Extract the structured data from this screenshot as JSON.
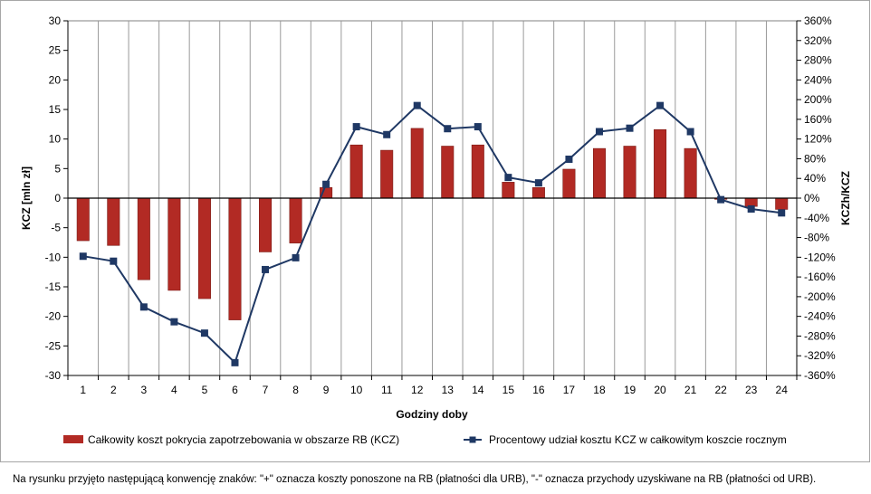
{
  "chart_data": {
    "type": "bar",
    "xlabel": "Godziny doby",
    "ylabel": "KCZ [mln zł]",
    "y2label": "KCZh/KCZ",
    "categories": [
      "1",
      "2",
      "3",
      "4",
      "5",
      "6",
      "7",
      "8",
      "9",
      "10",
      "11",
      "12",
      "13",
      "14",
      "15",
      "16",
      "17",
      "18",
      "19",
      "20",
      "21",
      "22",
      "23",
      "24"
    ],
    "ylim": [
      -30,
      30
    ],
    "yticks": [
      "30",
      "25",
      "20",
      "15",
      "10",
      "5",
      "0",
      "-5",
      "-10",
      "-15",
      "-20",
      "-25",
      "-30"
    ],
    "y2lim": [
      -360,
      360
    ],
    "y2ticks": [
      "360%",
      "320%",
      "280%",
      "240%",
      "200%",
      "160%",
      "120%",
      "80%",
      "40%",
      "0%",
      "-40%",
      "-80%",
      "-120%",
      "-160%",
      "-200%",
      "-240%",
      "-280%",
      "-320%",
      "-360%"
    ],
    "grid": "vertical",
    "legend_position": "bottom",
    "series": [
      {
        "name": "Całkowity koszt pokrycia zapotrzebowania w obszarze RB (KCZ)",
        "type": "bar",
        "axis": "left",
        "color": "#b22a24",
        "values": [
          -7.2,
          -8.0,
          -13.8,
          -15.6,
          -17.0,
          -20.6,
          -9.1,
          -7.6,
          1.8,
          9.0,
          8.1,
          11.8,
          8.8,
          9.0,
          2.7,
          1.8,
          4.9,
          8.4,
          8.8,
          11.6,
          8.4,
          -0.2,
          -1.4,
          -1.9
        ]
      },
      {
        "name": "Procentowy udział kosztu KCZ w całkowitym koszcie rocznym",
        "type": "line",
        "axis": "right",
        "color": "#1f3864",
        "values": [
          -118,
          -128,
          -221,
          -251,
          -274,
          -334,
          -145,
          -121,
          28,
          145,
          129,
          188,
          141,
          145,
          42,
          31,
          79,
          135,
          142,
          188,
          135,
          -3,
          -22,
          -30
        ]
      }
    ]
  },
  "footnote": "Na rysunku przyjęto następującą konwencję znaków: \"+\" oznacza koszty ponoszone na RB (płatności dla URB), \"-\" oznacza przychody uzyskiwane na RB (płatności od URB)."
}
